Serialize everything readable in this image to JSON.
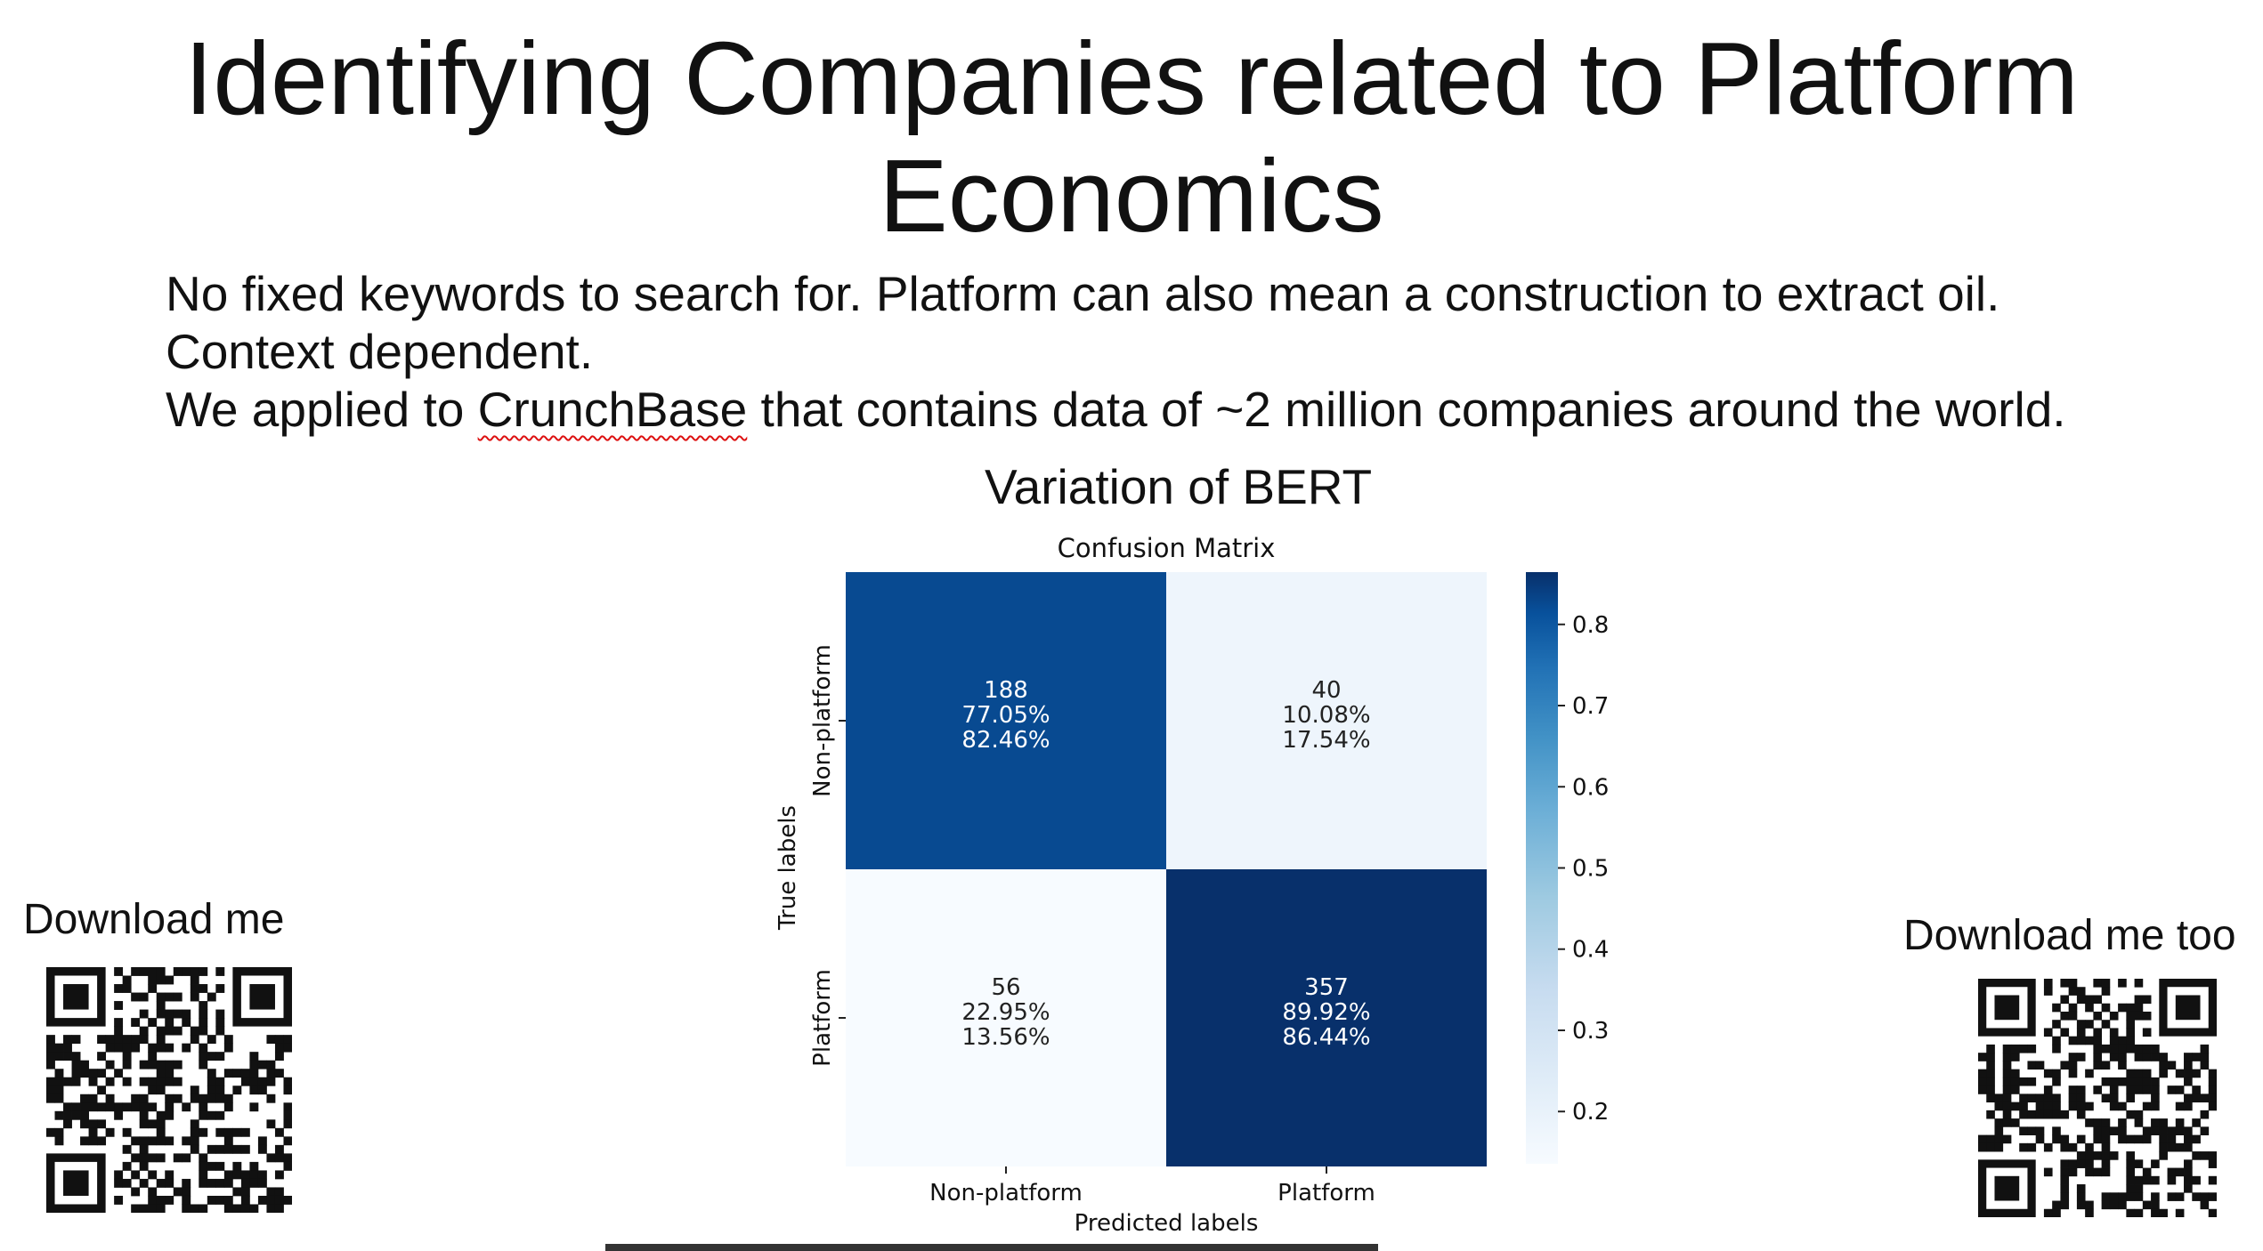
{
  "slide": {
    "title_line1": "Identifying Companies related to Platform",
    "title_line2": "Economics",
    "body_lines": [
      "No fixed keywords to search for. Platform can also mean a construction to extract oil.",
      "Context dependent."
    ],
    "body_line3_before": "We applied to ",
    "body_line3_flagged": "CrunchBase",
    "body_line3_after": " that contains data of ~2 million companies around the world.",
    "subtitle": "Variation of BERT",
    "download_left": "Download me",
    "download_right": "Download me too"
  },
  "chart_data": {
    "type": "heatmap",
    "title": "Confusion Matrix",
    "xlabel": "Predicted labels",
    "ylabel": "True labels",
    "x_categories": [
      "Non-platform",
      "Platform"
    ],
    "y_categories": [
      "Non-platform",
      "Platform"
    ],
    "colormap": "Blues",
    "color_scale_values": [
      0.8246,
      0.1754,
      0.1356,
      0.8644
    ],
    "cells": [
      [
        {
          "count": "188",
          "row_pct": "77.05%",
          "col_pct": "82.46%"
        },
        {
          "count": "40",
          "row_pct": "10.08%",
          "col_pct": "17.54%"
        }
      ],
      [
        {
          "count": "56",
          "row_pct": "22.95%",
          "col_pct": "13.56%"
        },
        {
          "count": "357",
          "row_pct": "89.92%",
          "col_pct": "86.44%"
        }
      ]
    ],
    "colorbar": {
      "ticks": [
        "0.2",
        "0.3",
        "0.4",
        "0.5",
        "0.6",
        "0.7",
        "0.8"
      ],
      "range": [
        0.1356,
        0.8644
      ]
    },
    "colors": {
      "darkest": "#08306b",
      "dark": "#0d57a1",
      "light": "#d0e2f2",
      "lightest": "#f2f8fd",
      "text_light": "#ffffff",
      "text_dark": "#222222"
    }
  }
}
